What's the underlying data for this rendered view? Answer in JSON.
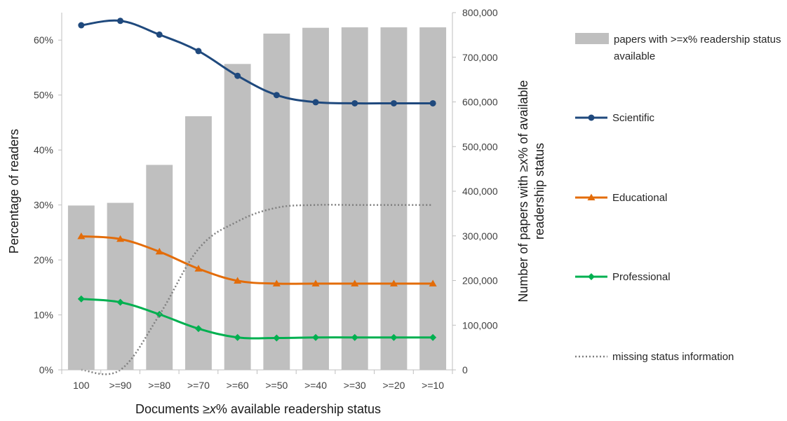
{
  "chart_data": {
    "type": "bar",
    "categories": [
      "100",
      ">=90",
      ">=80",
      ">=70",
      ">=60",
      ">=50",
      ">=40",
      ">=30",
      ">=20",
      ">=10"
    ],
    "bar_series": {
      "name": "papers with >=x% readership status available",
      "axis": "right",
      "color": "#bfbfbf",
      "values": [
        368000,
        374000,
        459000,
        568000,
        685000,
        753000,
        766000,
        767000,
        767000,
        767000
      ]
    },
    "line_series": [
      {
        "name": "Scientific",
        "axis": "left",
        "color": "#1f497d",
        "marker": "circle",
        "values": [
          62.7,
          63.5,
          61.0,
          58.0,
          53.5,
          50.0,
          48.7,
          48.5,
          48.5,
          48.5
        ]
      },
      {
        "name": "Educational",
        "axis": "left",
        "color": "#e36c09",
        "marker": "triangle",
        "values": [
          24.3,
          23.8,
          21.5,
          18.4,
          16.2,
          15.7,
          15.7,
          15.7,
          15.7,
          15.7
        ]
      },
      {
        "name": "Professional",
        "axis": "left",
        "color": "#00b050",
        "marker": "diamond",
        "values": [
          12.9,
          12.3,
          10.1,
          7.5,
          5.9,
          5.8,
          5.9,
          5.9,
          5.9,
          5.9
        ]
      },
      {
        "name": "missing status information",
        "axis": "left",
        "color": "#7f7f7f",
        "marker": "none",
        "dashed": true,
        "values": [
          0.0,
          0.0,
          10.0,
          22.0,
          27.0,
          29.5,
          30.0,
          30.0,
          30.0,
          30.0
        ]
      }
    ],
    "left_axis": {
      "label": "Percentage of readers",
      "ticks": [
        "0%",
        "10%",
        "20%",
        "30%",
        "40%",
        "50%",
        "60%"
      ],
      "range": [
        0,
        65
      ]
    },
    "right_axis": {
      "label_line1": "Number of papers with ≥x% of available",
      "label_line2": "readership status",
      "ticks": [
        "0",
        "100,000",
        "200,000",
        "300,000",
        "400,000",
        "500,000",
        "600,000",
        "700,000",
        "800,000"
      ],
      "range": [
        0,
        800000
      ]
    },
    "x_axis": {
      "label_prefix": "Documents ≥",
      "label_italic": "x",
      "label_suffix": "% available readership status"
    },
    "legend": {
      "placement": "right",
      "bar_label_line1": "papers with >=x% readership status",
      "bar_label_line2": "available",
      "scientific": "Scientific",
      "educational": "Educational",
      "professional": "Professional",
      "missing": "missing status information"
    },
    "grid": false
  }
}
